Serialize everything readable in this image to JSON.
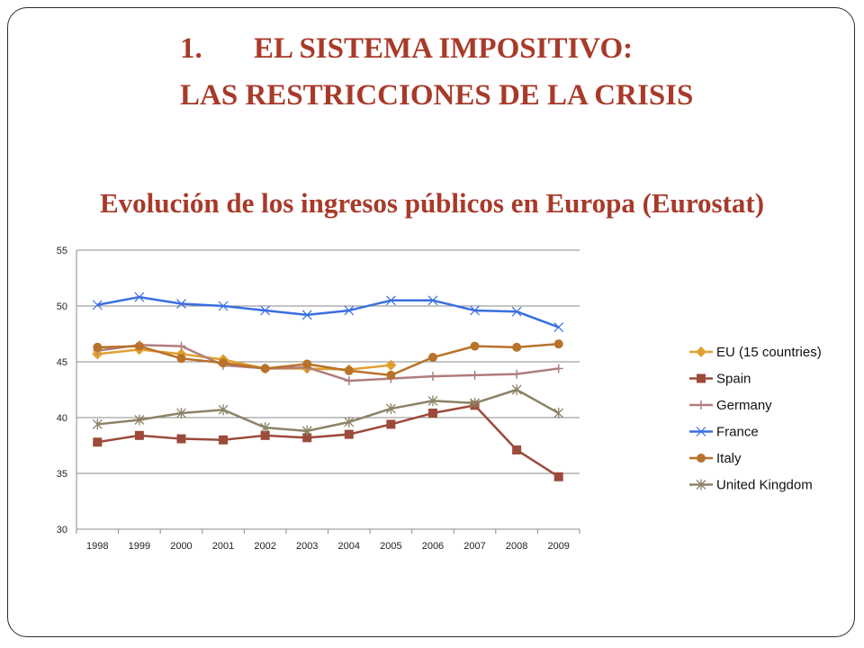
{
  "slide": {
    "heading_number": "1.",
    "heading_line1": "EL SISTEMA IMPOSITIVO:",
    "heading_line2": "LAS RESTRICCIONES DE LA CRISIS"
  },
  "chart_data": {
    "type": "line",
    "title": "Evolución de los ingresos públicos en Europa (Eurostat)",
    "xlabel": "",
    "ylabel": "",
    "categories": [
      "1998",
      "1999",
      "2000",
      "2001",
      "2002",
      "2003",
      "2004",
      "2005",
      "2006",
      "2007",
      "2008",
      "2009"
    ],
    "yticks": [
      "30",
      "35",
      "40",
      "45",
      "50",
      "55"
    ],
    "ylim": [
      30,
      55
    ],
    "grid": true,
    "legend_position": "right",
    "series": [
      {
        "name": "EU (15 countries)",
        "color": "#e0a030",
        "marker": "diamond",
        "values": [
          45.7,
          46.1,
          45.7,
          45.2,
          44.4,
          44.4,
          44.3,
          44.7,
          null,
          null,
          null,
          null
        ]
      },
      {
        "name": "Spain",
        "color": "#9c4a3a",
        "marker": "square",
        "values": [
          37.8,
          38.4,
          38.1,
          38.0,
          38.4,
          38.2,
          38.5,
          39.4,
          40.4,
          41.1,
          37.1,
          34.7
        ]
      },
      {
        "name": "Germany",
        "color": "#b07c7c",
        "marker": "plus",
        "values": [
          46.0,
          46.5,
          46.4,
          44.7,
          44.4,
          44.5,
          43.3,
          43.5,
          43.7,
          43.8,
          43.9,
          44.4
        ]
      },
      {
        "name": "France",
        "color": "#3a6ee0",
        "marker": "x",
        "values": [
          50.1,
          50.8,
          50.2,
          50.0,
          49.6,
          49.2,
          49.6,
          50.5,
          50.5,
          49.6,
          49.5,
          48.1
        ]
      },
      {
        "name": "Italy",
        "color": "#b8722a",
        "marker": "circle",
        "values": [
          46.3,
          46.4,
          45.3,
          44.9,
          44.4,
          44.8,
          44.2,
          43.8,
          45.4,
          46.4,
          46.3,
          46.6
        ]
      },
      {
        "name": "United Kingdom",
        "color": "#8c8266",
        "marker": "star",
        "values": [
          39.4,
          39.8,
          40.4,
          40.7,
          39.1,
          38.8,
          39.6,
          40.8,
          41.5,
          41.3,
          42.5,
          40.4
        ]
      }
    ]
  }
}
